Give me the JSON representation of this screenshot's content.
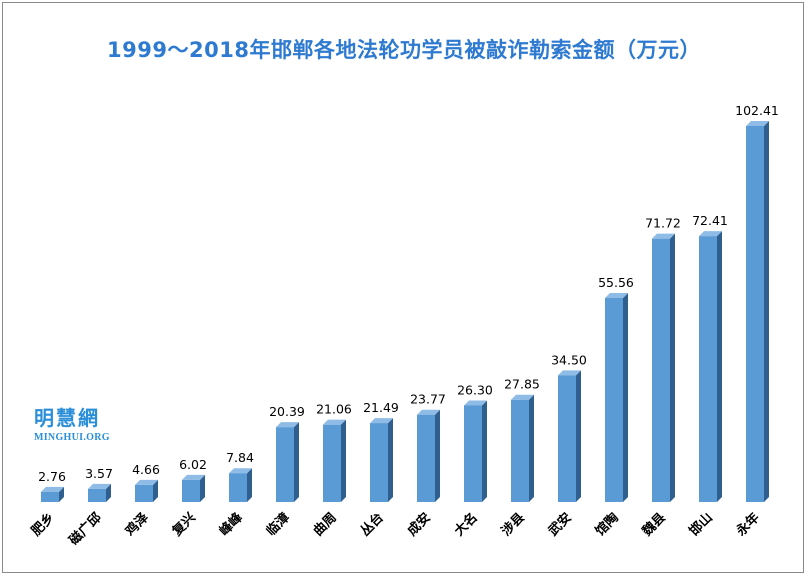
{
  "chart_data": {
    "type": "bar",
    "title": "1999～2018年邯郸各地法轮功学员被敲诈勒索金额（万元）",
    "categories": [
      "肥乡",
      "磁广邱",
      "鸡泽",
      "复兴",
      "峰峰",
      "临漳",
      "曲周",
      "丛台",
      "成安",
      "大名",
      "涉县",
      "武安",
      "馆陶",
      "魏县",
      "邯山",
      "永年"
    ],
    "values": [
      2.76,
      3.57,
      4.66,
      6.02,
      7.84,
      20.39,
      21.06,
      21.49,
      23.77,
      26.3,
      27.85,
      34.5,
      55.56,
      71.72,
      72.41,
      102.41
    ],
    "value_labels": [
      "2.76",
      "3.57",
      "4.66",
      "6.02",
      "7.84",
      "20.39",
      "21.06",
      "21.49",
      "23.77",
      "26.30",
      "27.85",
      "34.50",
      "55.56",
      "71.72",
      "72.41",
      "102.41"
    ],
    "grid": false,
    "legend": "none",
    "colors": {
      "bar_front": "#5b9bd5",
      "bar_side": "#2f5f8f",
      "bar_top": "#8fbce6",
      "title": "#2e7ad1"
    }
  },
  "watermark": {
    "cn": "明慧網",
    "en": "MINGHUI.ORG"
  }
}
